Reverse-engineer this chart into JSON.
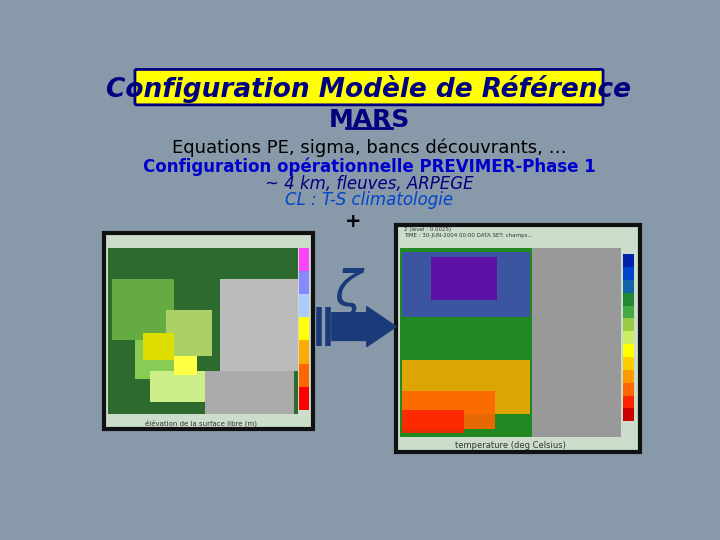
{
  "bg_color": "#8899aa",
  "title_banner_color": "#ffff00",
  "title_text": "Configuration Modèle de Référence",
  "title_text_color": "#000080",
  "subtitle_text": "MARS",
  "subtitle_color": "#000080",
  "line1": "Equations PE, sigma, bancs découvrants, …",
  "line1_color": "#000000",
  "line2": "Configuration opérationnelle PREVIMER-Phase 1",
  "line2_color": "#0000cc",
  "line3": "~ 4 km, fleuves, ARPEGE",
  "line3_color": "#000080",
  "line4": "CL : T-S climatologie",
  "line4_color": "#0044cc",
  "plus_sign": "+",
  "plus_color": "#000000",
  "arrow_color": "#1a3a7a",
  "zeta_color": "#1a3a7a"
}
